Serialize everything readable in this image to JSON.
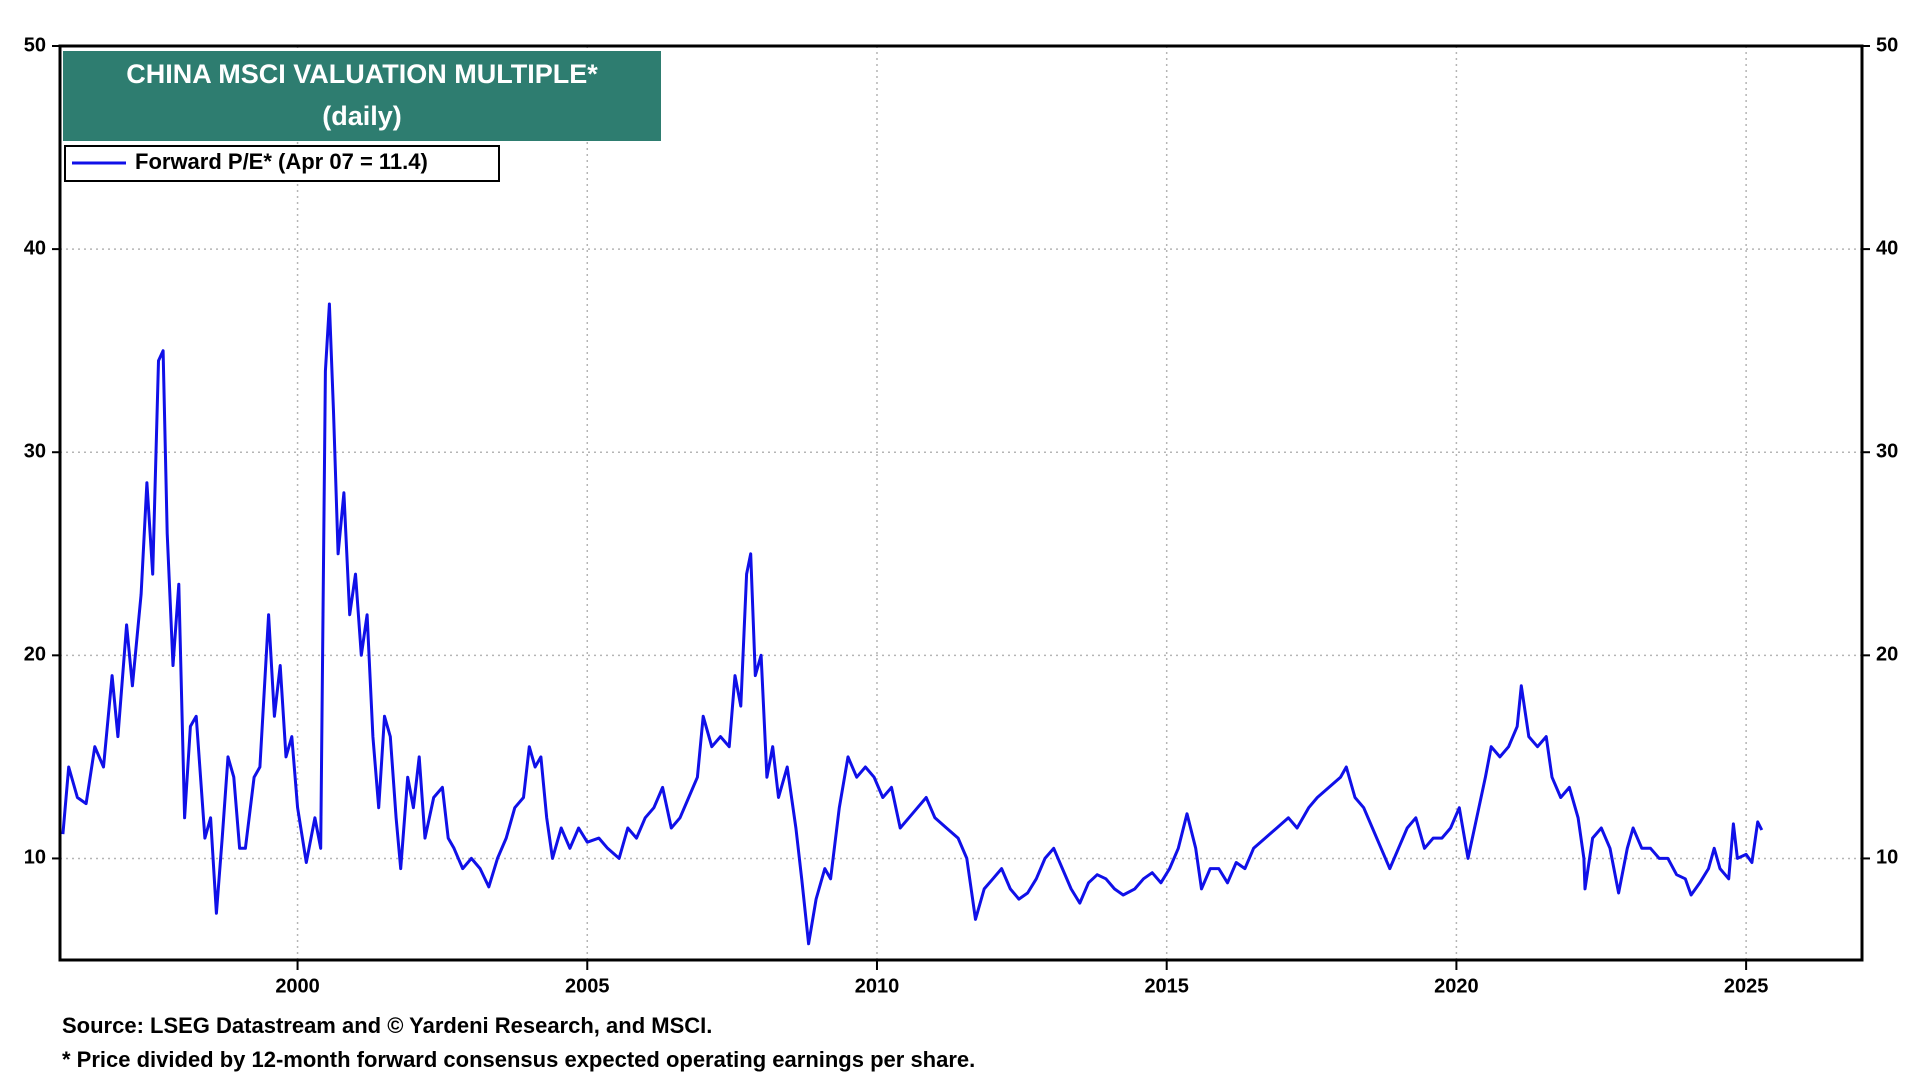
{
  "chart_data": {
    "type": "line",
    "title": "CHINA MSCI VALUATION MULTIPLE*",
    "subtitle": "(daily)",
    "notes": [
      "Source: LSEG Datastream and © Yardeni Research, and MSCI.",
      "* Price divided by 12-month forward consensus expected operating earnings per share."
    ],
    "xlim": [
      1995.9,
      2027.0
    ],
    "xticks": [
      2000,
      2005,
      2010,
      2015,
      2020,
      2025
    ],
    "ylim": [
      5,
      50
    ],
    "yticks": [
      10,
      20,
      30,
      40,
      50
    ],
    "grid": true,
    "legend": "upper left",
    "x": [
      1995.95,
      1996.05,
      1996.2,
      1996.35,
      1996.5,
      1996.65,
      1996.8,
      1996.9,
      1997.05,
      1997.15,
      1997.3,
      1997.4,
      1997.5,
      1997.6,
      1997.68,
      1997.75,
      1997.85,
      1997.95,
      1998.05,
      1998.15,
      1998.25,
      1998.4,
      1998.5,
      1998.6,
      1998.7,
      1998.8,
      1998.9,
      1999.0,
      1999.1,
      1999.25,
      1999.35,
      1999.5,
      1999.6,
      1999.7,
      1999.8,
      1999.9,
      2000.0,
      2000.15,
      2000.3,
      2000.4,
      2000.48,
      2000.55,
      2000.62,
      2000.7,
      2000.8,
      2000.9,
      2001.0,
      2001.1,
      2001.2,
      2001.3,
      2001.4,
      2001.5,
      2001.6,
      2001.7,
      2001.78,
      2001.9,
      2002.0,
      2002.1,
      2002.2,
      2002.35,
      2002.5,
      2002.6,
      2002.7,
      2002.85,
      2003.0,
      2003.15,
      2003.3,
      2003.45,
      2003.6,
      2003.75,
      2003.9,
      2004.0,
      2004.1,
      2004.2,
      2004.3,
      2004.4,
      2004.55,
      2004.7,
      2004.85,
      2005.0,
      2005.2,
      2005.35,
      2005.55,
      2005.7,
      2005.85,
      2006.0,
      2006.15,
      2006.3,
      2006.45,
      2006.6,
      2006.75,
      2006.9,
      2007.0,
      2007.15,
      2007.3,
      2007.45,
      2007.55,
      2007.65,
      2007.75,
      2007.82,
      2007.9,
      2008.0,
      2008.1,
      2008.2,
      2008.3,
      2008.45,
      2008.6,
      2008.7,
      2008.82,
      2008.95,
      2009.1,
      2009.2,
      2009.35,
      2009.5,
      2009.65,
      2009.8,
      2009.95,
      2010.1,
      2010.25,
      2010.4,
      2010.55,
      2010.7,
      2010.85,
      2011.0,
      2011.2,
      2011.4,
      2011.55,
      2011.7,
      2011.85,
      2012.0,
      2012.15,
      2012.3,
      2012.45,
      2012.6,
      2012.75,
      2012.9,
      2013.05,
      2013.2,
      2013.35,
      2013.5,
      2013.65,
      2013.8,
      2013.95,
      2014.1,
      2014.25,
      2014.45,
      2014.6,
      2014.75,
      2014.9,
      2015.05,
      2015.2,
      2015.35,
      2015.5,
      2015.6,
      2015.75,
      2015.9,
      2016.05,
      2016.2,
      2016.35,
      2016.5,
      2016.7,
      2016.9,
      2017.1,
      2017.25,
      2017.45,
      2017.6,
      2017.8,
      2018.0,
      2018.1,
      2018.25,
      2018.4,
      2018.55,
      2018.7,
      2018.85,
      2019.0,
      2019.15,
      2019.3,
      2019.45,
      2019.6,
      2019.75,
      2019.9,
      2020.05,
      2020.2,
      2020.35,
      2020.5,
      2020.6,
      2020.75,
      2020.9,
      2021.05,
      2021.12,
      2021.25,
      2021.4,
      2021.55,
      2021.65,
      2021.8,
      2021.95,
      2022.1,
      2022.2,
      2022.22,
      2022.35,
      2022.5,
      2022.65,
      2022.8,
      2022.95,
      2023.05,
      2023.2,
      2023.35,
      2023.5,
      2023.65,
      2023.8,
      2023.95,
      2024.05,
      2024.2,
      2024.35,
      2024.45,
      2024.55,
      2024.7,
      2024.78,
      2024.85,
      2025.0,
      2025.1,
      2025.2,
      2025.27
    ],
    "series": [
      {
        "name": "Forward P/E* (Apr 07 = 11.4)",
        "color": "#1010e8",
        "values": [
          11.2,
          14.5,
          13,
          12.7,
          15.5,
          14.5,
          19,
          16,
          21.5,
          18.5,
          23,
          28.5,
          24,
          34.5,
          35,
          26,
          19.5,
          23.5,
          12,
          16.5,
          17,
          11,
          12,
          7.3,
          11,
          15,
          14,
          10.5,
          10.5,
          14,
          14.5,
          22,
          17,
          19.5,
          15,
          16,
          12.5,
          9.8,
          12,
          10.5,
          34,
          37.3,
          32,
          25,
          28,
          22,
          24,
          20,
          22,
          16,
          12.5,
          17,
          16,
          12,
          9.5,
          14,
          12.5,
          15,
          11,
          13,
          13.5,
          11,
          10.5,
          9.5,
          10,
          9.5,
          8.6,
          10,
          11,
          12.5,
          13,
          15.5,
          14.5,
          15,
          12,
          10,
          11.5,
          10.5,
          11.5,
          10.8,
          11,
          10.5,
          10,
          11.5,
          11,
          12,
          12.5,
          13.5,
          11.5,
          12,
          13,
          14,
          17,
          15.5,
          16,
          15.5,
          19,
          17.5,
          24,
          25,
          19,
          20,
          14,
          15.5,
          13,
          14.5,
          11.5,
          9,
          5.8,
          8,
          9.5,
          9,
          12.5,
          15,
          14,
          14.5,
          14,
          13,
          13.5,
          11.5,
          12,
          12.5,
          13,
          12,
          11.5,
          11,
          10,
          7,
          8.5,
          9,
          9.5,
          8.5,
          8,
          8.3,
          9,
          10,
          10.5,
          9.5,
          8.5,
          7.8,
          8.8,
          9.2,
          9,
          8.5,
          8.2,
          8.5,
          9,
          9.3,
          8.8,
          9.5,
          10.5,
          12.2,
          10.5,
          8.5,
          9.5,
          9.5,
          8.8,
          9.8,
          9.5,
          10.5,
          11,
          11.5,
          12,
          11.5,
          12.5,
          13,
          13.5,
          14,
          14.5,
          13,
          12.5,
          11.5,
          10.5,
          9.5,
          10.5,
          11.5,
          12,
          10.5,
          11,
          11,
          11.5,
          12.5,
          10,
          12,
          14,
          15.5,
          15,
          15.5,
          16.5,
          18.5,
          16,
          15.5,
          16,
          14,
          13,
          13.5,
          12,
          10,
          8.5,
          11,
          11.5,
          10.5,
          8.3,
          10.5,
          11.5,
          10.5,
          10.5,
          10,
          10,
          9.2,
          9,
          8.2,
          8.8,
          9.5,
          10.5,
          9.5,
          9,
          11.7,
          10,
          10.2,
          9.8,
          11.8,
          11.4
        ]
      }
    ]
  }
}
